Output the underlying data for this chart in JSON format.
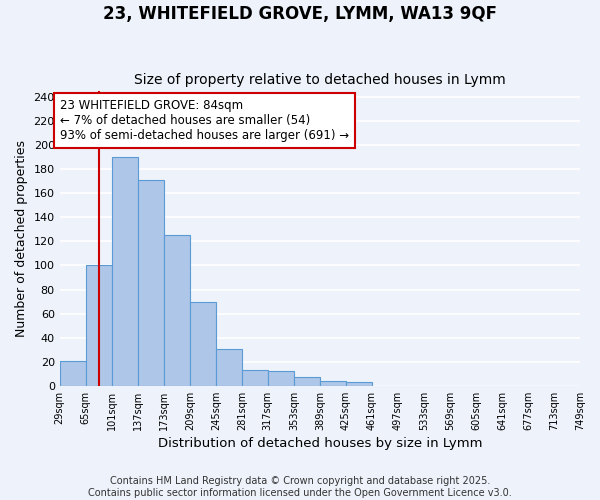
{
  "title": "23, WHITEFIELD GROVE, LYMM, WA13 9QF",
  "subtitle": "Size of property relative to detached houses in Lymm",
  "xlabel": "Distribution of detached houses by size in Lymm",
  "ylabel": "Number of detached properties",
  "bar_values": [
    21,
    100,
    190,
    171,
    125,
    70,
    31,
    13,
    12,
    7,
    4,
    3,
    0,
    0,
    0,
    0,
    0,
    0,
    0,
    0
  ],
  "bin_edges": [
    29,
    65,
    101,
    137,
    173,
    209,
    245,
    281,
    317,
    353,
    389,
    425,
    461,
    497,
    533,
    569,
    605,
    641,
    677,
    713,
    749
  ],
  "tick_labels": [
    "29sqm",
    "65sqm",
    "101sqm",
    "137sqm",
    "173sqm",
    "209sqm",
    "245sqm",
    "281sqm",
    "317sqm",
    "353sqm",
    "389sqm",
    "425sqm",
    "461sqm",
    "497sqm",
    "533sqm",
    "569sqm",
    "605sqm",
    "641sqm",
    "677sqm",
    "713sqm",
    "749sqm"
  ],
  "bar_color": "#aec6e8",
  "bar_edge_color": "#5b9bd5",
  "vline_x": 84,
  "vline_color": "#cc0000",
  "annotation_text": "23 WHITEFIELD GROVE: 84sqm\n← 7% of detached houses are smaller (54)\n93% of semi-detached houses are larger (691) →",
  "annotation_box_color": "#ffffff",
  "annotation_box_edge": "#cc0000",
  "ylim": [
    0,
    245
  ],
  "yticks": [
    0,
    20,
    40,
    60,
    80,
    100,
    120,
    140,
    160,
    180,
    200,
    220,
    240
  ],
  "background_color": "#eef2fa",
  "grid_color": "#ffffff",
  "footer_text": "Contains HM Land Registry data © Crown copyright and database right 2025.\nContains public sector information licensed under the Open Government Licence v3.0.",
  "title_fontsize": 12,
  "subtitle_fontsize": 10,
  "xlabel_fontsize": 9.5,
  "ylabel_fontsize": 9,
  "annotation_fontsize": 8.5,
  "footer_fontsize": 7
}
